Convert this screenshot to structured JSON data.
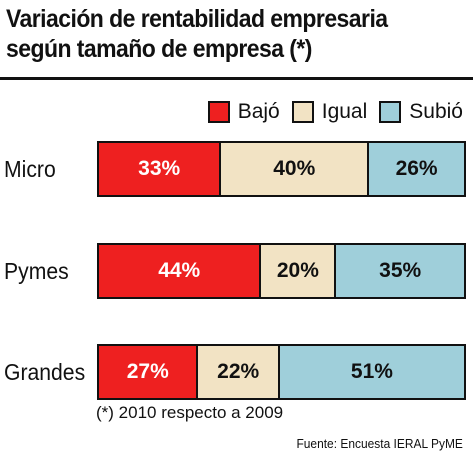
{
  "title_lines": [
    "Variación de rentabilidad empresaria",
    "según tamaño de empresa (*)"
  ],
  "note": "(*) 2010 respecto a 2009",
  "source": "Fuente: Encuesta IERAL PyME",
  "colors": {
    "bajo": "#ee2020",
    "igual": "#f2e3c4",
    "subio": "#9fcfda"
  },
  "chart_data": {
    "type": "bar",
    "orientation": "horizontal",
    "stacked": true,
    "categories": [
      "Micro",
      "Pymes",
      "Grandes"
    ],
    "series": [
      {
        "name": "Bajó",
        "color": "#ee2020",
        "values": [
          33,
          44,
          27
        ],
        "labels": [
          "33%",
          "44%",
          "27%"
        ]
      },
      {
        "name": "Igual",
        "color": "#f2e3c4",
        "values": [
          40,
          20,
          22
        ],
        "labels": [
          "40%",
          "20%",
          "22%"
        ]
      },
      {
        "name": "Subió",
        "color": "#9fcfda",
        "values": [
          26,
          35,
          51
        ],
        "labels": [
          "26%",
          "35%",
          "51%"
        ]
      }
    ],
    "legend_position": "top-right"
  }
}
